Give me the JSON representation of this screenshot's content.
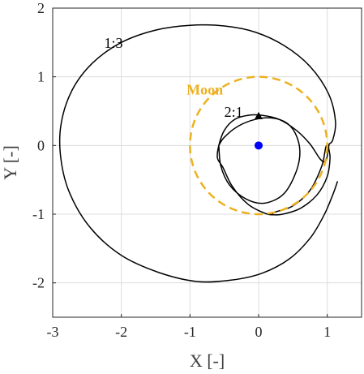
{
  "chart_data": {
    "type": "line",
    "title": "",
    "xlabel": "X [-]",
    "ylabel": "Y [-]",
    "xlim": [
      -3,
      1.5
    ],
    "ylim": [
      -2.5,
      2
    ],
    "xticks": [
      -3,
      -2,
      -1,
      0,
      1
    ],
    "yticks": [
      -2,
      -1,
      0,
      1,
      2
    ],
    "ytick_labels": [
      "-2",
      "-1",
      "0",
      "1",
      "2"
    ],
    "xtick_labels": [
      "-3",
      "-2",
      "-1",
      "0",
      "1"
    ],
    "grid": true,
    "annotations": [
      {
        "text": "1:3",
        "x": -2.25,
        "y": 1.42
      },
      {
        "text": "2:1",
        "x": -0.5,
        "y": 0.42
      },
      {
        "text": "Moon",
        "x": -1.05,
        "y": 0.74
      }
    ],
    "series": [
      {
        "name": "1:3",
        "color": "#000000",
        "style": "solid",
        "points": [
          [
            1.15,
            -0.52
          ],
          [
            1.08,
            -0.72
          ],
          [
            0.95,
            -1.02
          ],
          [
            0.75,
            -1.35
          ],
          [
            0.45,
            -1.65
          ],
          [
            0.05,
            -1.86
          ],
          [
            -0.4,
            -1.96
          ],
          [
            -0.9,
            -1.98
          ],
          [
            -1.45,
            -1.85
          ],
          [
            -2.0,
            -1.6
          ],
          [
            -2.45,
            -1.2
          ],
          [
            -2.75,
            -0.7
          ],
          [
            -2.88,
            -0.2
          ],
          [
            -2.88,
            0.3
          ],
          [
            -2.72,
            0.8
          ],
          [
            -2.42,
            1.2
          ],
          [
            -2.0,
            1.5
          ],
          [
            -1.5,
            1.68
          ],
          [
            -1.0,
            1.75
          ],
          [
            -0.5,
            1.74
          ],
          [
            -0.05,
            1.65
          ],
          [
            0.38,
            1.45
          ],
          [
            0.75,
            1.15
          ],
          [
            1.02,
            0.75
          ],
          [
            1.12,
            0.35
          ],
          [
            1.08,
            0.08
          ],
          [
            1.02,
            0.0
          ],
          [
            1.04,
            -0.18
          ],
          [
            1.0,
            -0.45
          ],
          [
            0.85,
            -0.72
          ],
          [
            0.6,
            -0.92
          ],
          [
            0.35,
            -1.0
          ],
          [
            0.22,
            -1.01
          ]
        ]
      },
      {
        "name": "2:1",
        "color": "#000000",
        "style": "solid",
        "points": [
          [
            0.22,
            -1.01
          ],
          [
            0.1,
            -0.99
          ],
          [
            -0.15,
            -0.86
          ],
          [
            -0.38,
            -0.6
          ],
          [
            -0.52,
            -0.32
          ],
          [
            -0.6,
            -0.18
          ],
          [
            -0.58,
            0.0
          ],
          [
            -0.5,
            0.22
          ],
          [
            -0.35,
            0.38
          ],
          [
            -0.15,
            0.44
          ],
          [
            0.05,
            0.44
          ],
          [
            0.3,
            0.38
          ],
          [
            0.55,
            0.22
          ],
          [
            0.75,
            0.02
          ],
          [
            0.9,
            -0.2
          ],
          [
            0.98,
            -0.22
          ],
          [
            1.02,
            -0.02
          ],
          [
            1.02,
            0.0
          ],
          [
            0.98,
            -0.02
          ],
          [
            0.92,
            -0.3
          ],
          [
            0.75,
            -0.65
          ],
          [
            0.5,
            -0.88
          ],
          [
            0.27,
            -0.96
          ],
          [
            0.2,
            -0.99
          ],
          [
            0.22,
            -1.01
          ]
        ]
      },
      {
        "name": "2:1 inner",
        "color": "#000000",
        "style": "solid",
        "points": [
          [
            -0.58,
            0.0
          ],
          [
            -0.55,
            -0.3
          ],
          [
            -0.42,
            -0.58
          ],
          [
            -0.18,
            -0.78
          ],
          [
            0.08,
            -0.84
          ],
          [
            0.35,
            -0.72
          ],
          [
            0.52,
            -0.45
          ],
          [
            0.6,
            -0.15
          ],
          [
            0.56,
            0.12
          ],
          [
            0.42,
            0.32
          ],
          [
            0.2,
            0.4
          ],
          [
            -0.05,
            0.38
          ],
          [
            -0.3,
            0.28
          ],
          [
            -0.5,
            0.12
          ],
          [
            -0.58,
            0.0
          ]
        ]
      },
      {
        "name": "Moon",
        "color": "#EDB120",
        "style": "dashed",
        "circle": {
          "cx": 0,
          "cy": 0,
          "r": 1
        }
      }
    ],
    "markers": [
      {
        "name": "Earth",
        "x": 0,
        "y": 0,
        "shape": "circle",
        "color": "#0000FF"
      },
      {
        "name": "start",
        "x": 0,
        "y": 0.43,
        "shape": "triangle",
        "color": "#000000"
      }
    ]
  }
}
